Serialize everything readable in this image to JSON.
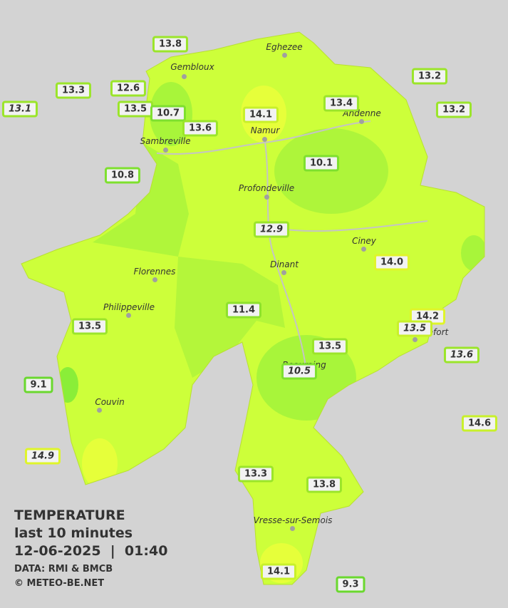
{
  "legend": {
    "title": "TEMPERATURE",
    "subtitle": "last 10 minutes",
    "datetime": "12-06-2025  |  01:40",
    "source": "DATA: RMI & BMCB",
    "credit": "© METEO-BE.NET"
  },
  "cities": [
    {
      "name": "Eghezee"
    },
    {
      "name": "Gembloux"
    },
    {
      "name": "Andenne"
    },
    {
      "name": "Namur"
    },
    {
      "name": "Sambreville"
    },
    {
      "name": "Profondeville"
    },
    {
      "name": "Ciney"
    },
    {
      "name": "Dinant"
    },
    {
      "name": "Florennes"
    },
    {
      "name": "Philippeville"
    },
    {
      "name": "Rochefort"
    },
    {
      "name": "Beauraing"
    },
    {
      "name": "Couvin"
    },
    {
      "name": "Vresse-sur-Semois"
    }
  ],
  "stations": [
    {
      "label": "13.8",
      "italic": false,
      "border": "#9be52a"
    },
    {
      "label": "13.3",
      "italic": false,
      "border": "#9be52a"
    },
    {
      "label": "13.1",
      "italic": true,
      "border": "#9be52a"
    },
    {
      "label": "12.6",
      "italic": false,
      "border": "#9be52a"
    },
    {
      "label": "13.5",
      "italic": false,
      "border": "#9be52a"
    },
    {
      "label": "10.7",
      "italic": false,
      "border": "#7ee02e"
    },
    {
      "label": "13.6",
      "italic": false,
      "border": "#9be52a"
    },
    {
      "label": "14.1",
      "italic": false,
      "border": "#c8f02a"
    },
    {
      "label": "13.4",
      "italic": false,
      "border": "#9be52a"
    },
    {
      "label": "13.2",
      "italic": false,
      "border": "#9be52a"
    },
    {
      "label": "13.2",
      "italic": false,
      "border": "#9be52a"
    },
    {
      "label": "10.1",
      "italic": false,
      "border": "#7ee02e"
    },
    {
      "label": "10.8",
      "italic": false,
      "border": "#7ee02e"
    },
    {
      "label": "12.9",
      "italic": true,
      "border": "#9be52a"
    },
    {
      "label": "14.0",
      "italic": false,
      "border": "#dff52a"
    },
    {
      "label": "11.4",
      "italic": false,
      "border": "#8ee22c"
    },
    {
      "label": "14.2",
      "italic": false,
      "border": "#dff52a"
    },
    {
      "label": "13.5",
      "italic": true,
      "border": "#c8f02a"
    },
    {
      "label": "13.5",
      "italic": false,
      "border": "#9be52a"
    },
    {
      "label": "13.5",
      "italic": false,
      "border": "#9be52a"
    },
    {
      "label": "13.6",
      "italic": true,
      "border": "#9be52a"
    },
    {
      "label": "10.5",
      "italic": true,
      "border": "#7ee02e"
    },
    {
      "label": "9.1",
      "italic": false,
      "border": "#6ad82e"
    },
    {
      "label": "14.6",
      "italic": false,
      "border": "#c8f02a"
    },
    {
      "label": "14.9",
      "italic": true,
      "border": "#dff52a"
    },
    {
      "label": "13.3",
      "italic": false,
      "border": "#9be52a"
    },
    {
      "label": "13.8",
      "italic": false,
      "border": "#9be52a"
    },
    {
      "label": "14.1",
      "italic": false,
      "border": "#c8f02a"
    },
    {
      "label": "9.3",
      "italic": false,
      "border": "#6ad82e"
    }
  ]
}
